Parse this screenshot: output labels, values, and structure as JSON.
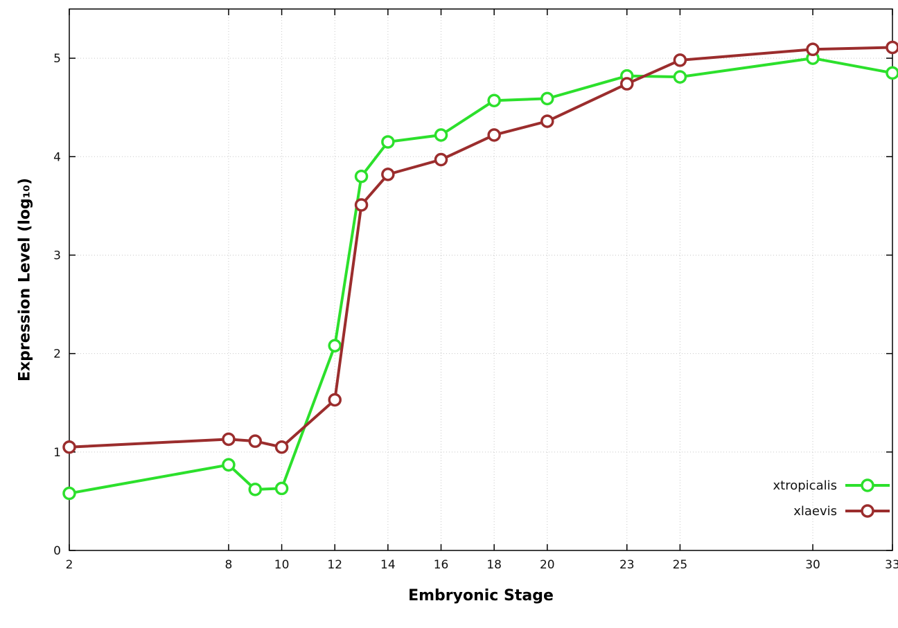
{
  "chart_data": {
    "type": "line",
    "title": "",
    "xlabel": "Embryonic Stage",
    "ylabel": "Expression Level (log₁₀)",
    "xlim": [
      2,
      33
    ],
    "ylim": [
      0,
      5.5
    ],
    "x_ticks": [
      2,
      8,
      10,
      12,
      14,
      16,
      18,
      20,
      23,
      25,
      30,
      33
    ],
    "y_ticks": [
      0,
      1,
      2,
      3,
      4,
      5
    ],
    "grid": true,
    "legend_position": "bottom-right",
    "x": [
      2,
      8,
      9,
      10,
      12,
      13,
      14,
      16,
      18,
      20,
      23,
      25,
      30,
      33
    ],
    "series": [
      {
        "name": "xtropicalis",
        "color": "#2ce02c",
        "values": [
          0.58,
          0.87,
          0.62,
          0.63,
          2.08,
          3.8,
          4.15,
          4.22,
          4.57,
          4.59,
          4.82,
          4.81,
          5.0,
          4.85
        ]
      },
      {
        "name": "xlaevis",
        "color": "#9b2d2d",
        "values": [
          1.05,
          1.13,
          1.11,
          1.05,
          1.53,
          3.51,
          3.82,
          3.97,
          4.22,
          4.36,
          4.74,
          4.98,
          5.09,
          5.11
        ]
      }
    ],
    "colors": {
      "grid": "#c8c8c8",
      "axis": "#000000",
      "tick_text": "#111111",
      "background": "#ffffff"
    }
  }
}
